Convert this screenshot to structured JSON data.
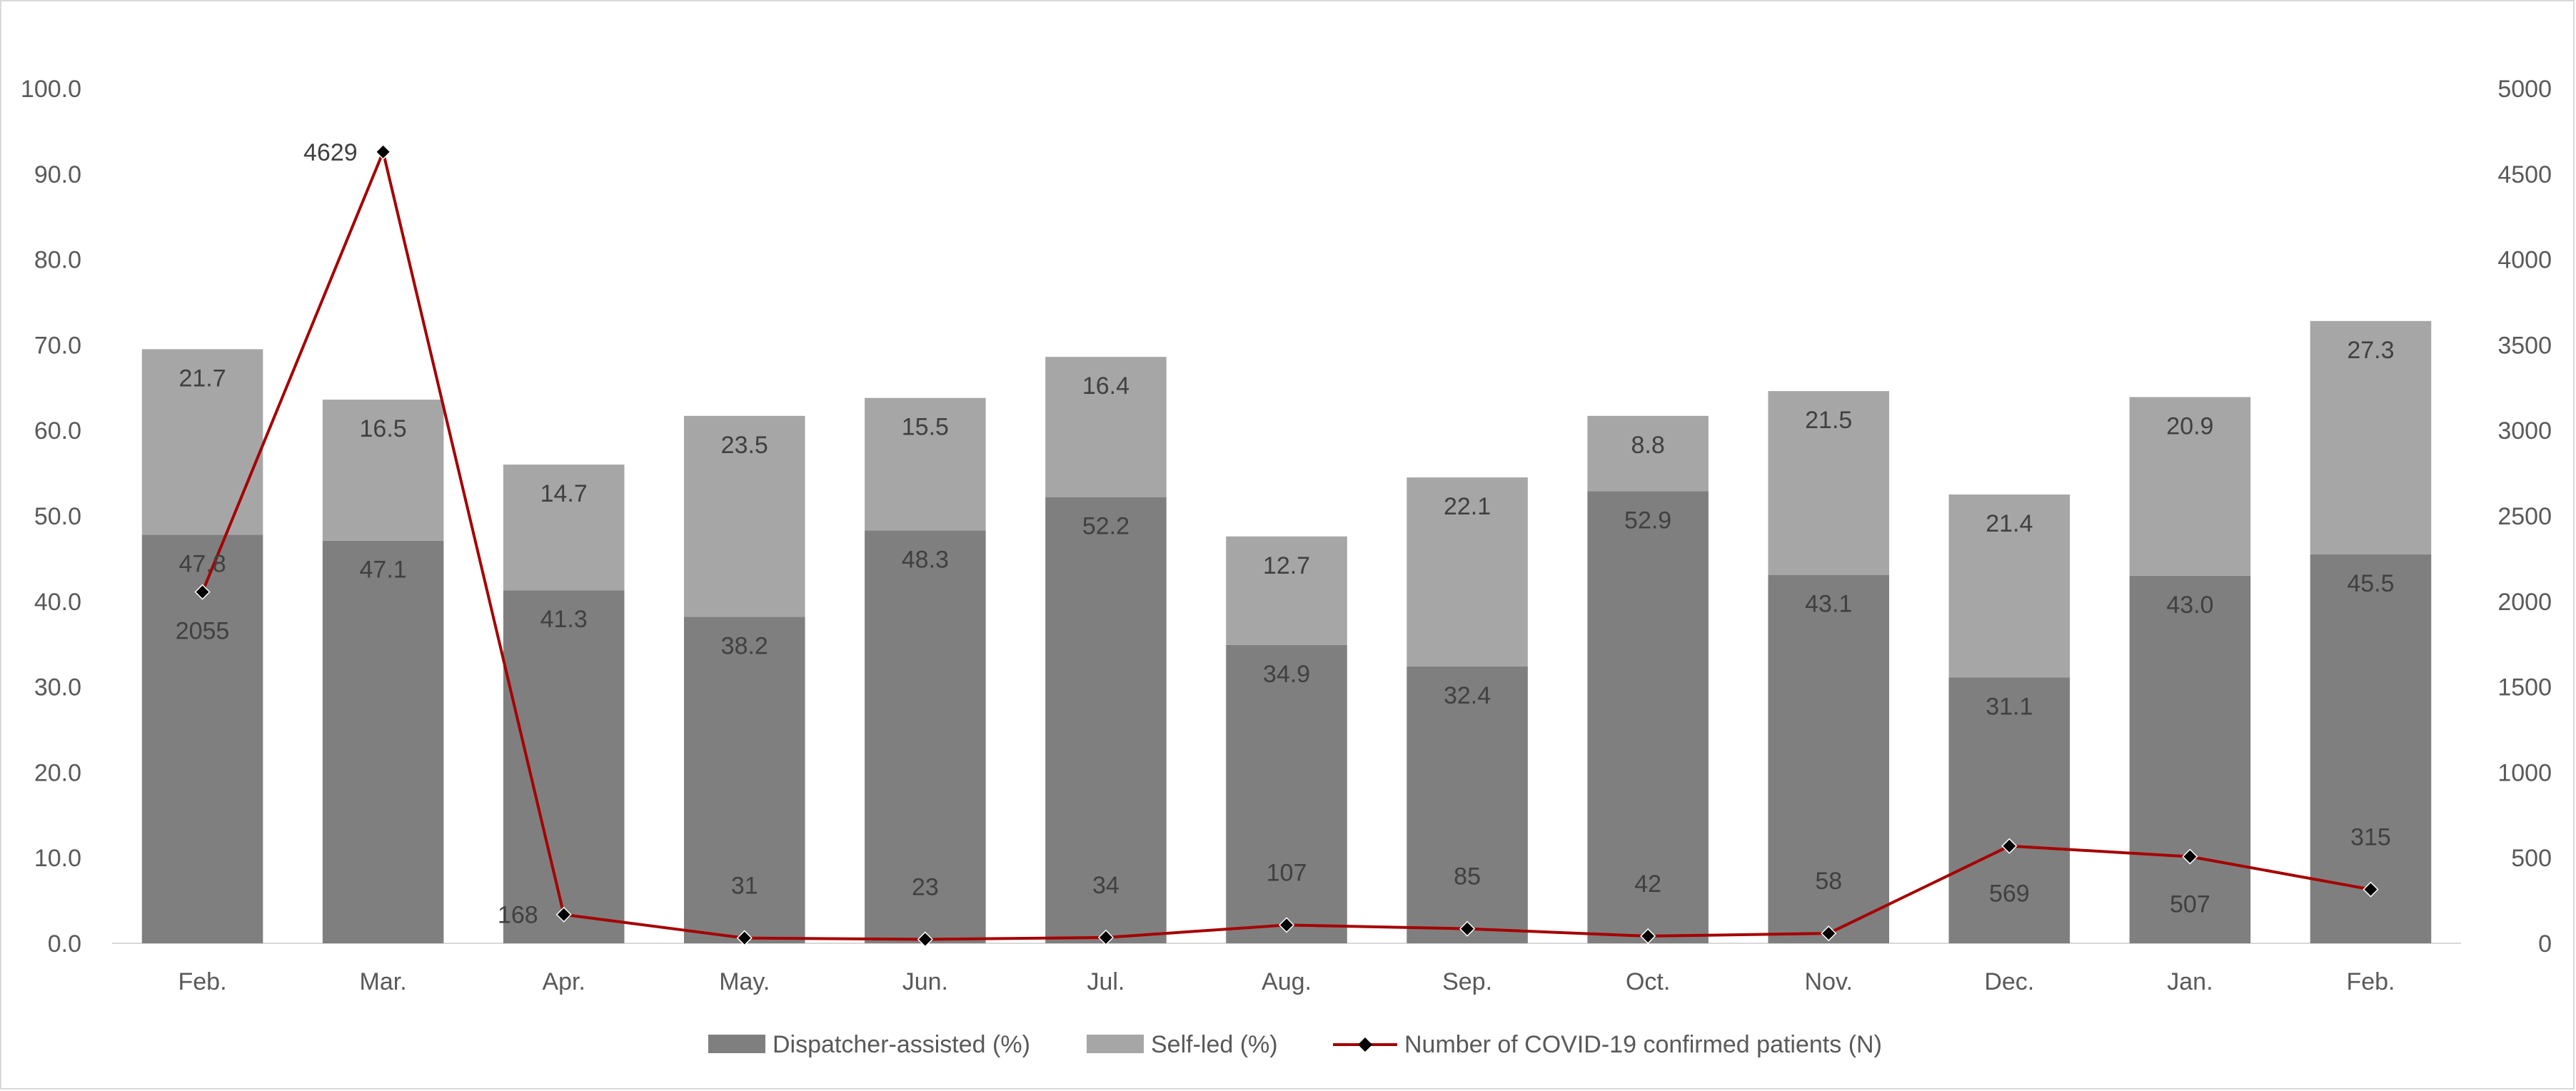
{
  "chart_data": {
    "type": "bar",
    "stacked": true,
    "categories": [
      "Feb.",
      "Mar.",
      "Apr.",
      "May.",
      "Jun.",
      "Jul.",
      "Aug.",
      "Sep.",
      "Oct.",
      "Nov.",
      "Dec.",
      "Jan.",
      "Feb."
    ],
    "series": [
      {
        "name": "Dispatcher-assisted (%)",
        "type": "bar",
        "axis": "left",
        "color": "#7f7f7f",
        "values": [
          47.8,
          47.1,
          41.3,
          38.2,
          48.3,
          52.2,
          34.9,
          32.4,
          52.9,
          43.1,
          31.1,
          43.0,
          45.5
        ],
        "labels": [
          "47.8",
          "47.1",
          "41.3",
          "38.2",
          "48.3",
          "52.2",
          "34.9",
          "32.4",
          "52.9",
          "43.1",
          "31.1",
          "43.0",
          "45.5"
        ]
      },
      {
        "name": "Self-led (%)",
        "type": "bar",
        "axis": "left",
        "color": "#a6a6a6",
        "values": [
          21.7,
          16.5,
          14.7,
          23.5,
          15.5,
          16.4,
          12.7,
          22.1,
          8.8,
          21.5,
          21.4,
          20.9,
          27.3
        ],
        "labels": [
          "21.7",
          "16.5",
          "14.7",
          "23.5",
          "15.5",
          "16.4",
          "12.7",
          "22.1",
          "8.8",
          "21.5",
          "21.4",
          "20.9",
          "27.3"
        ]
      },
      {
        "name": "Number of COVID-19 confirmed patients (N)",
        "type": "line",
        "axis": "right",
        "color": "#a50000",
        "marker_color": "#000000",
        "values": [
          2055,
          4629,
          168,
          31,
          23,
          34,
          107,
          85,
          42,
          58,
          569,
          507,
          315
        ],
        "labels": [
          "2055",
          "4629",
          "168",
          "31",
          "23",
          "34",
          "107",
          "85",
          "42",
          "58",
          "569",
          "507",
          "315"
        ]
      }
    ],
    "y_left": {
      "range": [
        0,
        100
      ],
      "ticks": [
        "0.0",
        "10.0",
        "20.0",
        "30.0",
        "40.0",
        "50.0",
        "60.0",
        "70.0",
        "80.0",
        "90.0",
        "100.0"
      ]
    },
    "y_right": {
      "range": [
        0,
        5000
      ],
      "ticks": [
        "0",
        "500",
        "1000",
        "1500",
        "2000",
        "2500",
        "3000",
        "3500",
        "4000",
        "4500",
        "5000"
      ]
    },
    "grid": false,
    "legend_position": "bottom",
    "xlabel": "",
    "ylabel": ""
  }
}
